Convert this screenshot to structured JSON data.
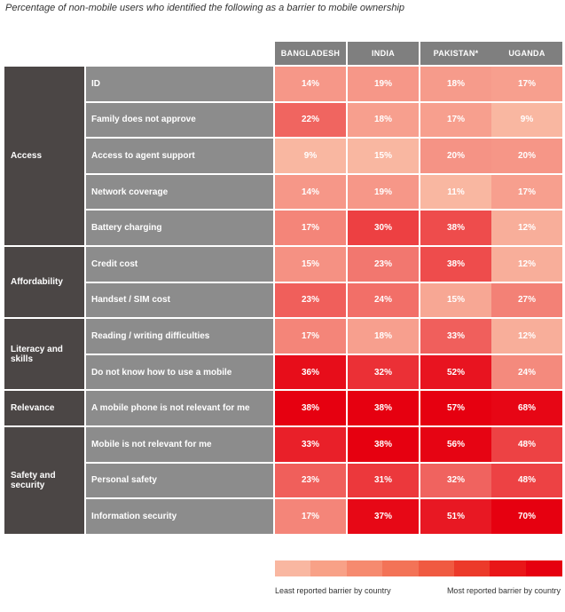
{
  "chart_data": {
    "type": "heatmap",
    "title": "Percentage of non-mobile users who identified the following as a barrier to mobile ownership",
    "columns": [
      "BANGLADESH",
      "INDIA",
      "PAKISTAN*",
      "UGANDA"
    ],
    "groups": [
      {
        "name": "Access",
        "rows": [
          {
            "label": "ID",
            "values": [
              14,
              19,
              18,
              17
            ]
          },
          {
            "label": "Family does not approve",
            "values": [
              22,
              18,
              17,
              9
            ]
          },
          {
            "label": "Access to agent support",
            "values": [
              9,
              15,
              20,
              20
            ]
          },
          {
            "label": "Network coverage",
            "values": [
              14,
              19,
              11,
              17
            ]
          },
          {
            "label": "Battery charging",
            "values": [
              17,
              30,
              38,
              12
            ]
          }
        ]
      },
      {
        "name": "Affordability",
        "rows": [
          {
            "label": "Credit cost",
            "values": [
              15,
              23,
              38,
              12
            ]
          },
          {
            "label": "Handset / SIM cost",
            "values": [
              23,
              24,
              15,
              27
            ]
          }
        ]
      },
      {
        "name": "Literacy and skills",
        "rows": [
          {
            "label": "Reading / writing difficulties",
            "values": [
              17,
              18,
              33,
              12
            ]
          },
          {
            "label": "Do not know how to use a mobile",
            "values": [
              36,
              32,
              52,
              24
            ]
          }
        ]
      },
      {
        "name": "Relevance",
        "rows": [
          {
            "label": "A mobile phone is not relevant for me",
            "values": [
              38,
              38,
              57,
              68
            ]
          }
        ]
      },
      {
        "name": "Safety and security",
        "rows": [
          {
            "label": "Mobile is not relevant for me",
            "values": [
              33,
              38,
              56,
              48
            ]
          },
          {
            "label": "Personal safety",
            "values": [
              23,
              31,
              32,
              48
            ]
          },
          {
            "label": "Information security",
            "values": [
              17,
              37,
              51,
              70
            ]
          }
        ]
      }
    ],
    "value_suffix": "%",
    "legend": {
      "low_label": "Least reported barrier by country",
      "high_label": "Most reported barrier by country",
      "colors": [
        "#f9b7a1",
        "#f8a187",
        "#f68a6f",
        "#f37357",
        "#f05a41",
        "#ec3a2a",
        "#e91618",
        "#e60010"
      ]
    }
  }
}
